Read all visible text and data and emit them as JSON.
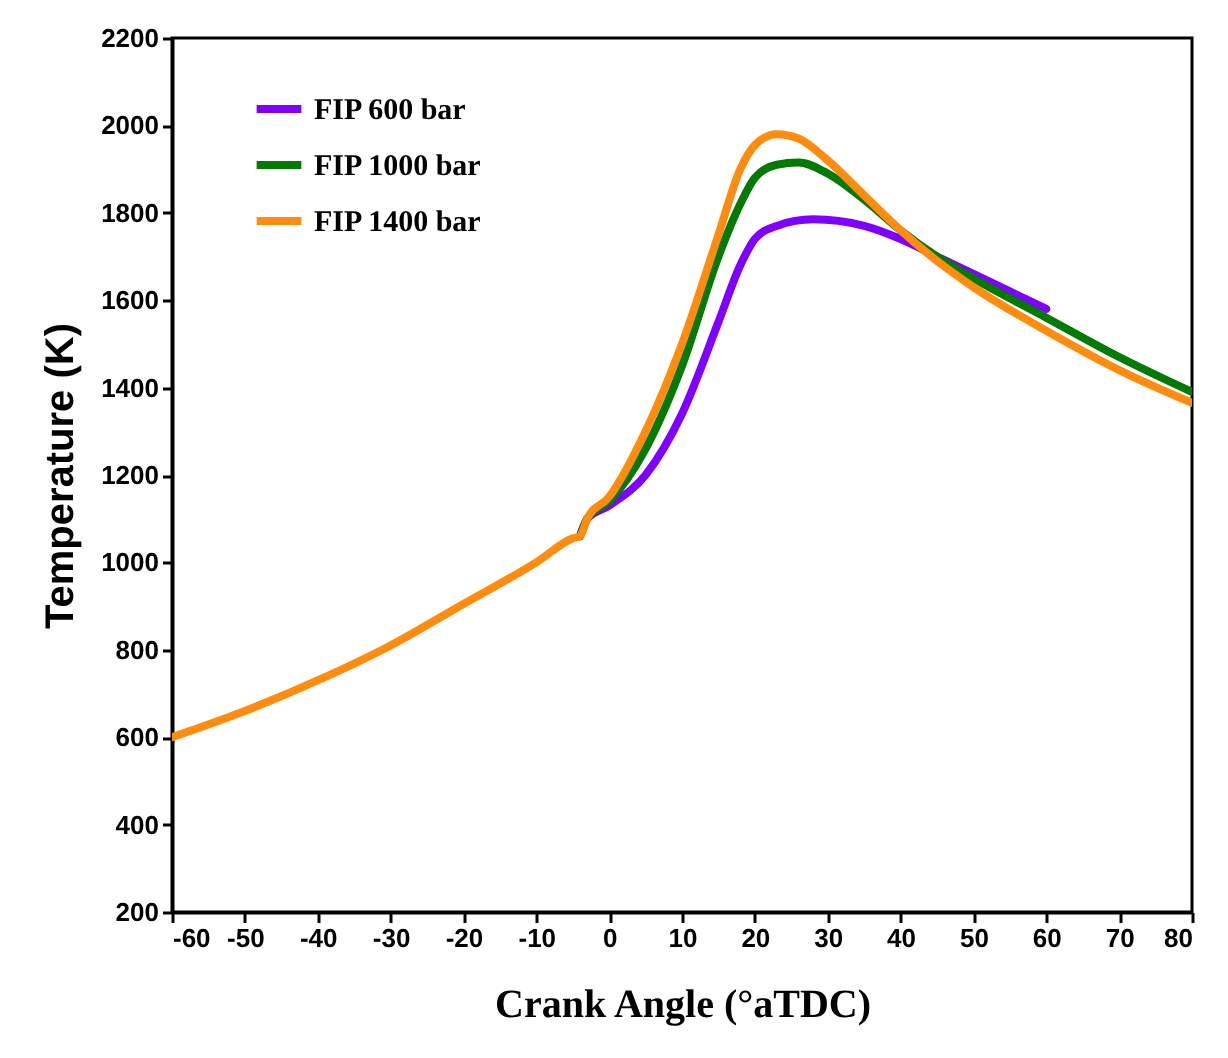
{
  "chart_data": {
    "type": "line",
    "xlabel": "Crank Angle (°aTDC)",
    "ylabel": "Temperature (K)",
    "xlim": [
      -60,
      80
    ],
    "ylim": [
      200,
      2200
    ],
    "xticks": [
      -60,
      -50,
      -40,
      -30,
      -20,
      -10,
      0,
      10,
      20,
      30,
      40,
      50,
      60,
      70,
      80
    ],
    "yticks": [
      200,
      400,
      600,
      800,
      1000,
      1200,
      1400,
      1600,
      1800,
      2000,
      2200
    ],
    "grid": false,
    "legend": "top left",
    "line_style": "solid",
    "marker": "none",
    "series": [
      {
        "name": "FIP 600   bar",
        "color": "#7f00ff",
        "x": [
          -4,
          -3,
          0,
          5,
          10,
          15,
          18,
          20,
          23,
          28,
          35,
          40,
          45,
          50,
          55,
          60
        ],
        "values": [
          1060,
          1100,
          1130,
          1200,
          1340,
          1550,
          1680,
          1740,
          1770,
          1785,
          1770,
          1740,
          1700,
          1660,
          1620,
          1580
        ]
      },
      {
        "name": "FIP 1000 bar",
        "color": "#037a03",
        "x": [
          -4,
          -3,
          0,
          5,
          10,
          15,
          18,
          20,
          23,
          26,
          30,
          35,
          40,
          45,
          50,
          60,
          70,
          80
        ],
        "values": [
          1060,
          1100,
          1140,
          1260,
          1450,
          1700,
          1820,
          1880,
          1910,
          1915,
          1890,
          1830,
          1760,
          1700,
          1650,
          1560,
          1470,
          1390
        ]
      },
      {
        "name": "FIP 1400 bar",
        "color": "#ff8c0f",
        "x": [
          -60,
          -50,
          -40,
          -30,
          -20,
          -10,
          -5,
          -4,
          -3,
          0,
          5,
          10,
          15,
          18,
          20,
          23,
          26,
          30,
          35,
          40,
          45,
          50,
          60,
          70,
          80
        ],
        "values": [
          600,
          660,
          730,
          810,
          905,
          1000,
          1055,
          1060,
          1100,
          1150,
          1300,
          1500,
          1750,
          1900,
          1955,
          1980,
          1970,
          1920,
          1840,
          1760,
          1690,
          1630,
          1530,
          1440,
          1365
        ]
      }
    ]
  }
}
